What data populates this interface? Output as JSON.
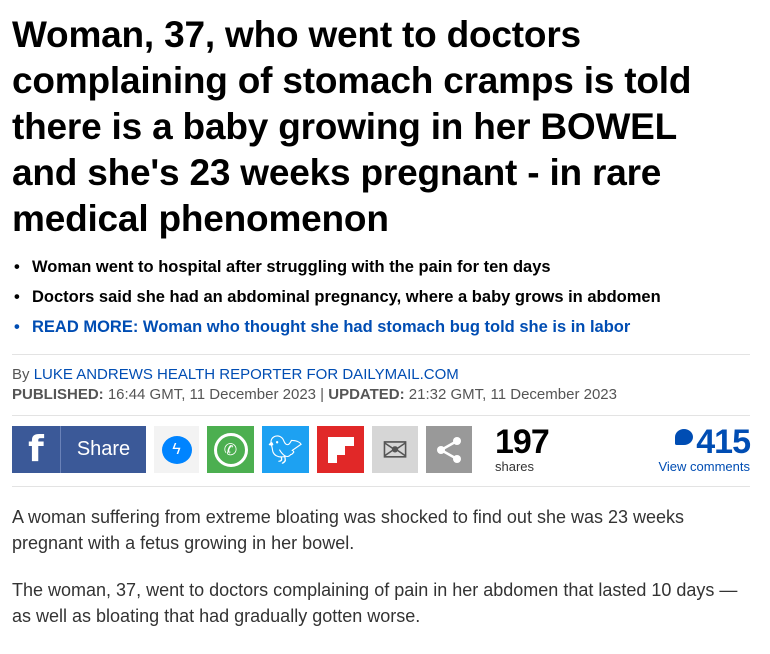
{
  "headline": "Woman, 37, who went to doctors complaining of stomach cramps is told there is a baby growing in her BOWEL and she's 23 weeks pregnant - in rare medical phenomenon",
  "bullets": [
    "Woman went to hospital after struggling with the pain for ten days",
    "Doctors said she had an abdominal pregnancy, where a baby grows in abdomen",
    "READ MORE: Woman who thought she had stomach bug told she is in labor"
  ],
  "byline": {
    "by": "By ",
    "author": "LUKE ANDREWS HEALTH REPORTER FOR DAILYMAIL.COM",
    "published_label": "PUBLISHED:",
    "published": " 16:44 GMT, 11 December 2023 | ",
    "updated_label": "UPDATED:",
    "updated": " 21:32 GMT, 11 December 2023"
  },
  "share": {
    "fb_label": "Share",
    "count": "197",
    "count_label": "shares",
    "comments": "415",
    "comments_label": "View comments"
  },
  "colors": {
    "facebook": "#3b5998",
    "messenger": "#0084ff",
    "whatsapp": "#4caf50",
    "twitter": "#1da1f2",
    "flipboard": "#e12828",
    "email": "#d6d6d6",
    "share": "#999999",
    "link": "#004db3"
  },
  "paragraphs": [
    "A woman suffering from extreme bloating was shocked to find out she was 23 weeks pregnant with a fetus growing in her bowel.",
    "The woman, 37, went to doctors complaining of pain in her abdomen that lasted 10 days — as well as bloating that had gradually gotten worse."
  ]
}
